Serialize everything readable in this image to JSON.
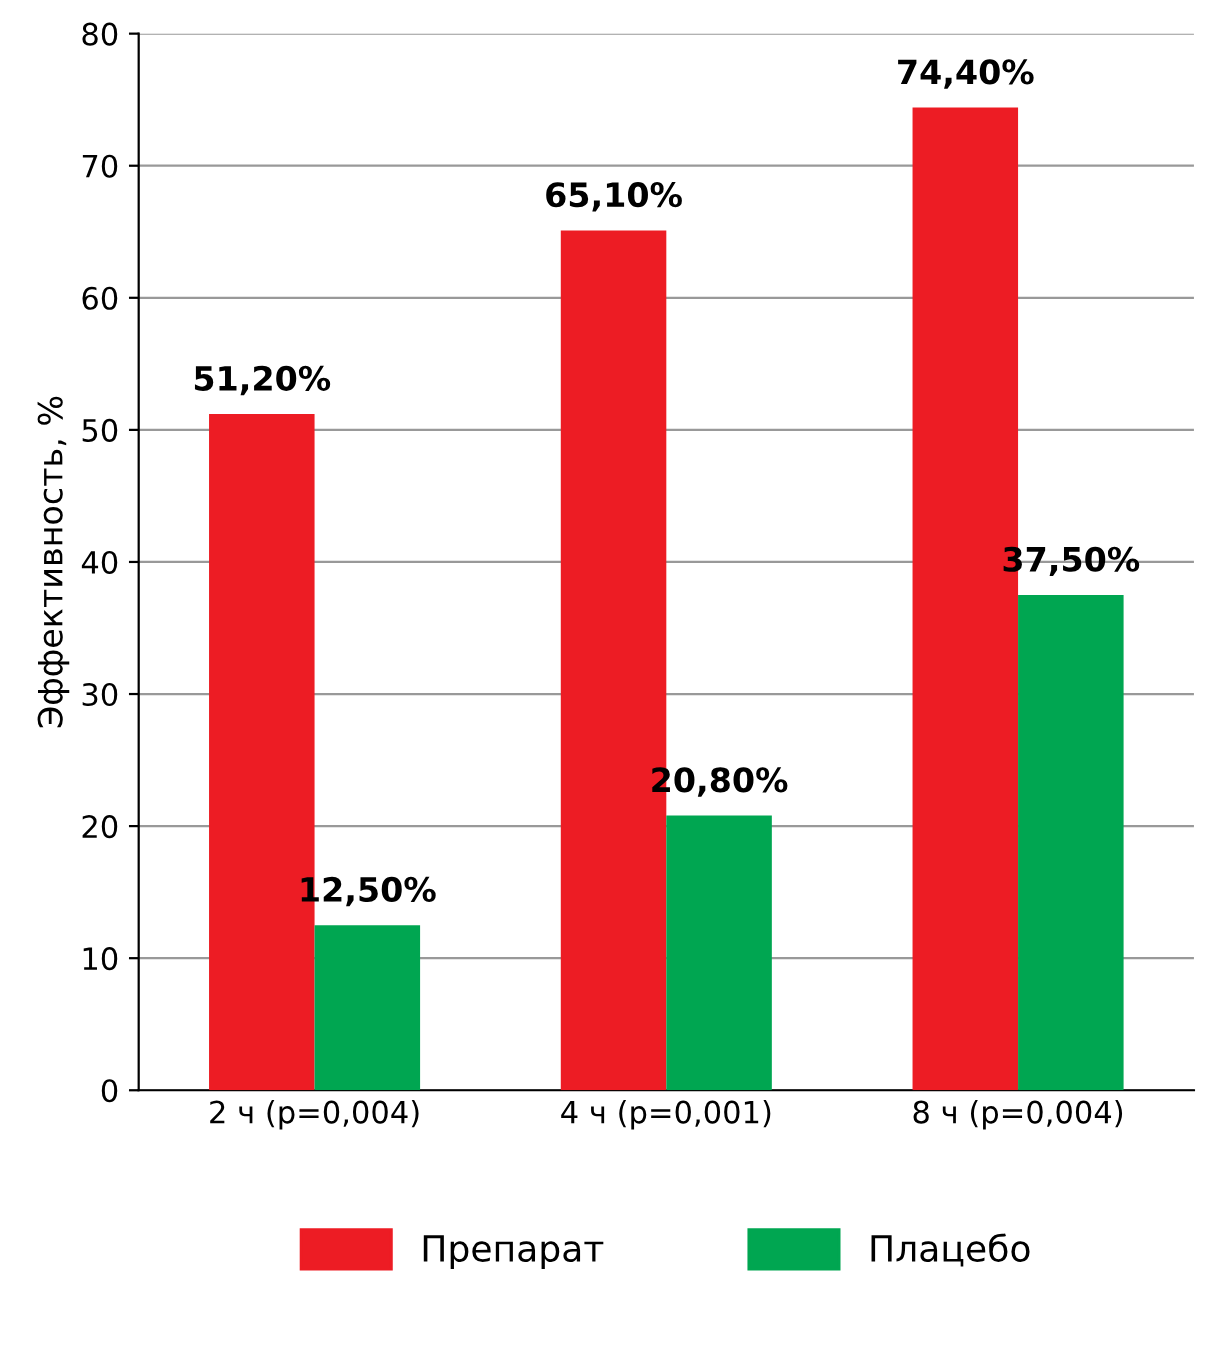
{
  "chart_data": {
    "type": "bar",
    "ylabel": "Эффективность, %",
    "categories": [
      "2 ч (p=0,004)",
      "4 ч (p=0,001)",
      "8 ч (p=0,004)"
    ],
    "series": [
      {
        "name": "Препарат",
        "color": "#ed1c24",
        "values": [
          51.2,
          65.1,
          74.4
        ],
        "value_labels": [
          "51,20%",
          "65,10%",
          "74,40%"
        ]
      },
      {
        "name": "Плацебо",
        "color": "#00a651",
        "values": [
          12.5,
          20.8,
          37.5
        ],
        "value_labels": [
          "12,50%",
          "20,80%",
          "37,50%"
        ]
      }
    ],
    "ylim": [
      0,
      80
    ],
    "yticks": [
      0,
      10,
      20,
      30,
      40,
      50,
      60,
      70,
      80
    ],
    "grid": "y",
    "legend": "bottom"
  }
}
